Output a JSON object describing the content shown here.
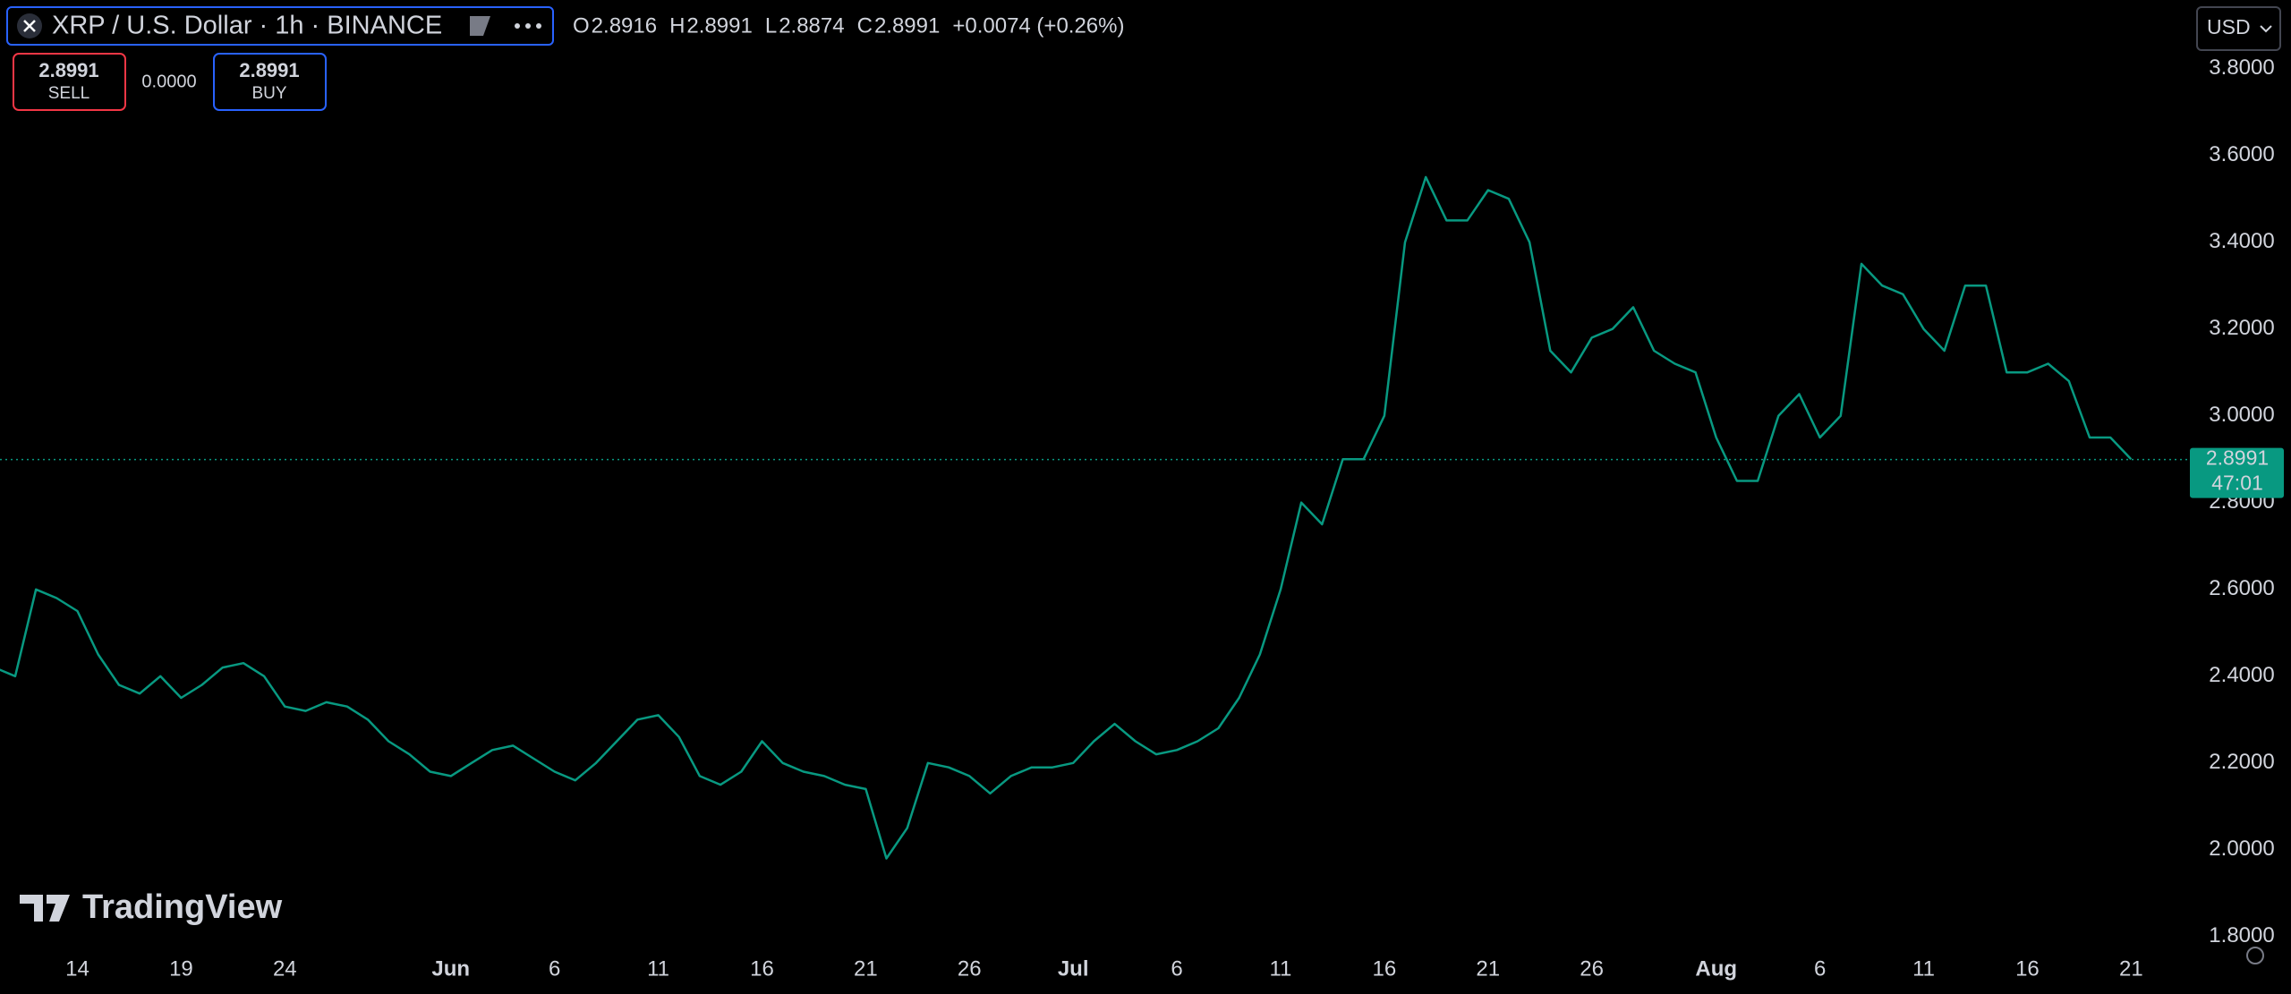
{
  "toolbar": {
    "symbol": "XRP / U.S. Dollar · 1h · BINANCE",
    "ohlc": [
      {
        "label": "O",
        "value": "2.8916"
      },
      {
        "label": "H",
        "value": "2.8991"
      },
      {
        "label": "L",
        "value": "2.8874"
      },
      {
        "label": "C",
        "value": "2.8991"
      }
    ],
    "change": "+0.0074 (+0.26%)",
    "sell": {
      "price": "2.8991",
      "label": "SELL"
    },
    "spread": "0.0000",
    "buy": {
      "price": "2.8991",
      "label": "BUY"
    },
    "currency": "USD",
    "logo": "TradingView"
  },
  "chart_data": {
    "type": "line",
    "categories": [
      null,
      null,
      null,
      null,
      "14",
      null,
      null,
      null,
      null,
      "19",
      null,
      null,
      null,
      null,
      "24",
      null,
      null,
      null,
      null,
      null,
      null,
      null,
      "Jun",
      null,
      null,
      null,
      null,
      "6",
      null,
      null,
      null,
      null,
      "11",
      null,
      null,
      null,
      null,
      "16",
      null,
      null,
      null,
      null,
      "21",
      null,
      null,
      null,
      null,
      "26",
      null,
      null,
      null,
      null,
      "Jul",
      null,
      null,
      null,
      null,
      "6",
      null,
      null,
      null,
      null,
      "11",
      null,
      null,
      null,
      null,
      "16",
      null,
      null,
      null,
      null,
      "21",
      null,
      null,
      null,
      null,
      "26",
      null,
      null,
      null,
      null,
      null,
      "Aug",
      null,
      null,
      null,
      null,
      "6",
      null,
      null,
      null,
      null,
      "11",
      null,
      null,
      null,
      null,
      "16",
      null,
      null,
      null,
      null,
      "21"
    ],
    "series": [
      {
        "color": "#089981",
        "values": [
          2.42,
          2.4,
          2.6,
          2.58,
          2.55,
          2.45,
          2.38,
          2.36,
          2.4,
          2.35,
          2.38,
          2.42,
          2.43,
          2.4,
          2.33,
          2.32,
          2.34,
          2.33,
          2.3,
          2.25,
          2.22,
          2.18,
          2.17,
          2.2,
          2.23,
          2.24,
          2.21,
          2.18,
          2.16,
          2.2,
          2.25,
          2.3,
          2.31,
          2.26,
          2.17,
          2.15,
          2.18,
          2.25,
          2.2,
          2.18,
          2.17,
          2.15,
          2.14,
          1.98,
          2.05,
          2.2,
          2.19,
          2.17,
          2.13,
          2.17,
          2.19,
          2.19,
          2.2,
          2.25,
          2.29,
          2.25,
          2.22,
          2.23,
          2.25,
          2.28,
          2.35,
          2.45,
          2.6,
          2.8,
          2.75,
          2.9,
          2.9,
          3.0,
          3.4,
          3.55,
          3.45,
          3.45,
          3.52,
          3.5,
          3.4,
          3.15,
          3.1,
          3.18,
          3.2,
          3.25,
          3.15,
          3.12,
          3.1,
          2.95,
          2.85,
          2.85,
          3.0,
          3.05,
          2.95,
          3.0,
          3.35,
          3.3,
          3.28,
          3.2,
          3.15,
          3.3,
          3.3,
          3.1,
          3.1,
          3.12,
          3.08,
          2.95,
          2.95,
          2.9
        ]
      }
    ],
    "ylim": [
      1.777,
      3.958
    ],
    "yticks": [
      {
        "value": 1.8,
        "label": "1.8000"
      },
      {
        "value": 2.0,
        "label": "2.0000"
      },
      {
        "value": 2.2,
        "label": "2.2000"
      },
      {
        "value": 2.4,
        "label": "2.4000"
      },
      {
        "value": 2.6,
        "label": "2.6000"
      },
      {
        "value": 2.8,
        "label": "2.8000"
      },
      {
        "value": 3.0,
        "label": "3.0000"
      },
      {
        "value": 3.2,
        "label": "3.2000"
      },
      {
        "value": 3.4,
        "label": "3.4000"
      },
      {
        "value": 3.6,
        "label": "3.6000"
      },
      {
        "value": 3.8,
        "label": "3.8000"
      }
    ],
    "last_price": 2.8991,
    "countdown": "47:01",
    "grid": false
  }
}
